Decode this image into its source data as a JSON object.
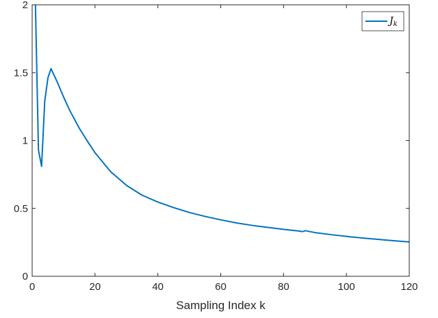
{
  "chart_data": {
    "type": "line",
    "title": "",
    "xlabel": "Sampling Index k",
    "ylabel": "",
    "xlim": [
      0,
      120
    ],
    "ylim": [
      0,
      2
    ],
    "xticks": [
      0,
      20,
      40,
      60,
      80,
      100,
      120
    ],
    "yticks": [
      0,
      0.5,
      1,
      1.5,
      2
    ],
    "ytick_labels": [
      "0",
      "0.5",
      "1",
      "1.5",
      "2"
    ],
    "grid": false,
    "legend_position": "top-right",
    "series": [
      {
        "name": "J",
        "name_subscript": "k",
        "color": "#0072BD",
        "x": [
          1,
          2,
          3,
          4,
          5,
          6,
          8,
          10,
          12,
          15,
          18,
          20,
          25,
          30,
          35,
          40,
          45,
          50,
          55,
          60,
          65,
          70,
          75,
          80,
          85,
          86,
          87,
          88,
          90,
          95,
          100,
          105,
          110,
          115,
          120
        ],
        "y": [
          2.05,
          0.93,
          0.81,
          1.29,
          1.46,
          1.53,
          1.43,
          1.32,
          1.22,
          1.09,
          0.98,
          0.91,
          0.77,
          0.67,
          0.597,
          0.547,
          0.506,
          0.47,
          0.441,
          0.416,
          0.393,
          0.375,
          0.36,
          0.346,
          0.333,
          0.329,
          0.336,
          0.331,
          0.322,
          0.307,
          0.294,
          0.282,
          0.272,
          0.262,
          0.253
        ]
      }
    ]
  }
}
